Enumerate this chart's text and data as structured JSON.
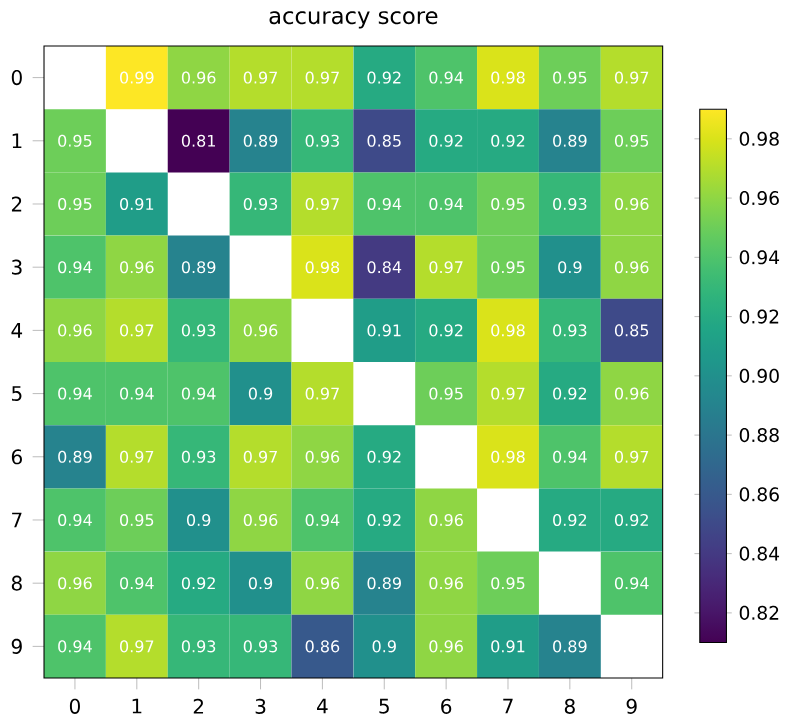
{
  "chart_data": {
    "type": "heatmap",
    "title": "accuracy score",
    "categories": [
      "0",
      "1",
      "2",
      "3",
      "4",
      "5",
      "6",
      "7",
      "8",
      "9"
    ],
    "y_categories": [
      "0",
      "1",
      "2",
      "3",
      "4",
      "5",
      "6",
      "7",
      "8",
      "9"
    ],
    "cells": [
      [
        null,
        0.99,
        0.96,
        0.97,
        0.97,
        0.92,
        0.94,
        0.98,
        0.95,
        0.97
      ],
      [
        0.95,
        null,
        0.81,
        0.89,
        0.93,
        0.85,
        0.92,
        0.92,
        0.89,
        0.95
      ],
      [
        0.95,
        0.91,
        null,
        0.93,
        0.97,
        0.94,
        0.94,
        0.95,
        0.93,
        0.96
      ],
      [
        0.94,
        0.96,
        0.89,
        null,
        0.98,
        0.84,
        0.97,
        0.95,
        0.9,
        0.96
      ],
      [
        0.96,
        0.97,
        0.93,
        0.96,
        null,
        0.91,
        0.92,
        0.98,
        0.93,
        0.85
      ],
      [
        0.94,
        0.94,
        0.94,
        0.9,
        0.97,
        null,
        0.95,
        0.97,
        0.92,
        0.96
      ],
      [
        0.89,
        0.97,
        0.93,
        0.97,
        0.96,
        0.92,
        null,
        0.98,
        0.94,
        0.97
      ],
      [
        0.94,
        0.95,
        0.9,
        0.96,
        0.94,
        0.92,
        0.96,
        null,
        0.92,
        0.92
      ],
      [
        0.96,
        0.94,
        0.92,
        0.9,
        0.96,
        0.89,
        0.96,
        0.95,
        null,
        0.94
      ],
      [
        0.94,
        0.97,
        0.93,
        0.93,
        0.86,
        0.9,
        0.96,
        0.91,
        0.89,
        null
      ]
    ],
    "data_labels": true,
    "clim": [
      0.81,
      0.99
    ],
    "cticks": [
      0.82,
      0.84,
      0.86,
      0.88,
      {
        "value": 0.9,
        "label": "0.90"
      },
      0.92,
      0.94,
      0.96,
      0.98
    ]
  }
}
